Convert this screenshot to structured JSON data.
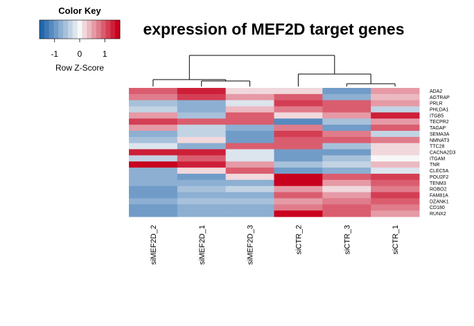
{
  "chart_data": {
    "type": "heatmap",
    "title": "expression of MEF2D target genes",
    "color_key": {
      "title": "Color Key",
      "label": "Row Z-Score",
      "ticks": [
        "-1",
        "0",
        "1"
      ],
      "tick_values": [
        -1,
        0,
        1
      ],
      "range": [
        -1.6,
        1.6
      ],
      "low_color": "#2166ac",
      "mid_color": "#f7f7f7",
      "high_color": "#c8001e"
    },
    "columns": [
      "siMEF2D_2",
      "siMEF2D_1",
      "siMEF2D_3",
      "siCTR_2",
      "siCTR_3",
      "siCTR_1"
    ],
    "rows": [
      "ADA2",
      "AGTRAP",
      "PRLR",
      "PHLDA1",
      "ITGB5",
      "TECPR2",
      "TAGAP",
      "SEMA3A",
      "NMNAT3",
      "TTC28",
      "CACNA2D3",
      "ITGAM",
      "TNR",
      "CLEC5A",
      "POU2F2",
      "TENM3",
      "ROBO2",
      "FAM81A",
      "DZANK1",
      "CD180",
      "RUNX2"
    ],
    "values": [
      [
        1.0,
        1.4,
        0.3,
        0.2,
        -1.0,
        0.6
      ],
      [
        0.8,
        1.1,
        0.5,
        0.9,
        -0.8,
        0.4
      ],
      [
        -0.6,
        -0.8,
        -0.2,
        1.1,
        1.0,
        0.5
      ],
      [
        -0.4,
        -0.9,
        0.4,
        0.8,
        0.9,
        -0.5
      ],
      [
        0.5,
        -0.6,
        1.0,
        0.1,
        0.7,
        1.3
      ],
      [
        1.2,
        1.0,
        0.9,
        -1.2,
        -0.6,
        0.6
      ],
      [
        0.6,
        -0.4,
        -0.8,
        0.8,
        -1.0,
        1.0
      ],
      [
        -0.9,
        -0.5,
        -1.1,
        1.2,
        0.8,
        -0.4
      ],
      [
        -0.6,
        0.2,
        -1.0,
        0.9,
        0.9,
        0.8
      ],
      [
        -0.3,
        -0.8,
        1.0,
        0.9,
        -0.7,
        0.2
      ],
      [
        1.3,
        1.4,
        -0.2,
        -1.0,
        -1.1,
        0.3
      ],
      [
        -0.5,
        0.9,
        -0.3,
        -1.0,
        -0.6,
        -0.1
      ],
      [
        1.6,
        1.3,
        0.7,
        -0.6,
        -0.4,
        0.4
      ],
      [
        -0.8,
        0.3,
        1.0,
        -1.1,
        -0.9,
        -0.3
      ],
      [
        -0.9,
        -1.0,
        0.2,
        1.5,
        0.9,
        1.1
      ],
      [
        -0.8,
        -0.9,
        -0.8,
        1.5,
        0.5,
        0.9
      ],
      [
        -1.0,
        -0.6,
        -0.5,
        0.7,
        0.1,
        0.8
      ],
      [
        -1.0,
        -0.8,
        -0.8,
        0.9,
        0.6,
        1.2
      ],
      [
        -0.9,
        -0.7,
        -0.6,
        0.6,
        0.8,
        0.9
      ],
      [
        -1.0,
        -0.8,
        -0.9,
        0.8,
        0.9,
        0.8
      ],
      [
        -1.0,
        -0.9,
        -0.8,
        1.5,
        0.9,
        0.7
      ]
    ],
    "column_dendrogram": true,
    "row_dendrogram": false,
    "grid": false
  }
}
